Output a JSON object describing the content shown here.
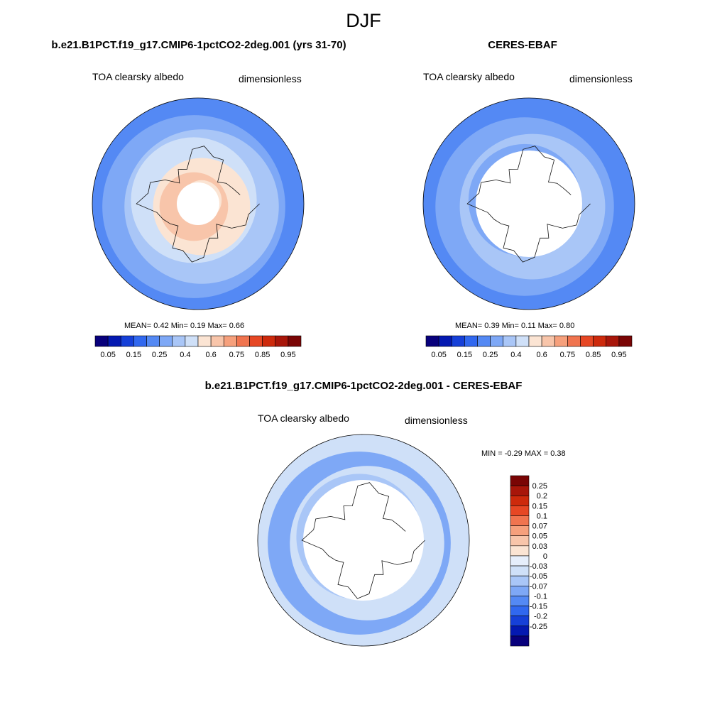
{
  "figure": {
    "title": "DJF"
  },
  "colors": {
    "seq": [
      "#08007c",
      "#0419b1",
      "#1640d8",
      "#3168ef",
      "#5489f4",
      "#7ea8f6",
      "#a9c6f7",
      "#cfe0f8",
      "#fbe4d3",
      "#f8c5aa",
      "#f6a07c",
      "#f0744f",
      "#e64724",
      "#cd2a0c",
      "#a8160a",
      "#7a0505"
    ],
    "diff": [
      "#7a0505",
      "#a8160a",
      "#cd2a0c",
      "#e64724",
      "#f0744f",
      "#f6a07c",
      "#f8c5aa",
      "#fbe4d3",
      "#e6eefb",
      "#cfe0f8",
      "#a9c6f7",
      "#7ea8f6",
      "#5489f4",
      "#3168ef",
      "#1640d8",
      "#0419b1",
      "#08007c"
    ]
  },
  "chart_data": [
    {
      "type": "heatmap",
      "title": "b.e21.B1PCT.f19_g17.CMIP6-1pctCO2-2deg.001 (yrs 31-70)",
      "variable": "TOA clearsky albedo",
      "units": "dimensionless",
      "projection": "north polar stereographic",
      "stats": {
        "mean_label": "MEAN=",
        "mean": "0.42",
        "min_label": "Min=",
        "min": "0.19",
        "max_label": "Max=",
        "max": "0.66"
      },
      "colorbar_ticks": [
        "0.05",
        "0.15",
        "0.25",
        "0.4",
        "0.6",
        "0.75",
        "0.85",
        "0.95"
      ]
    },
    {
      "type": "heatmap",
      "title": "CERES-EBAF",
      "variable": "TOA clearsky albedo",
      "units": "dimensionless",
      "projection": "north polar stereographic",
      "stats": {
        "mean_label": "MEAN=",
        "mean": "0.39",
        "min_label": "Min=",
        "min": "0.11",
        "max_label": "Max=",
        "max": "0.80"
      },
      "colorbar_ticks": [
        "0.05",
        "0.15",
        "0.25",
        "0.4",
        "0.6",
        "0.75",
        "0.85",
        "0.95"
      ]
    },
    {
      "type": "heatmap",
      "title": "b.e21.B1PCT.f19_g17.CMIP6-1pctCO2-2deg.001 - CERES-EBAF",
      "variable": "TOA clearsky albedo",
      "units": "dimensionless",
      "projection": "north polar stereographic",
      "stats": {
        "min_label": "MIN =",
        "min": "-0.29",
        "max_label": "MAX =",
        "max": "0.38"
      },
      "colorbar_ticks": [
        "0.25",
        "0.2",
        "0.15",
        "0.1",
        "0.07",
        "0.05",
        "0.03",
        "0",
        "-0.03",
        "-0.05",
        "-0.07",
        "-0.1",
        "-0.15",
        "-0.2",
        "-0.25"
      ]
    }
  ]
}
